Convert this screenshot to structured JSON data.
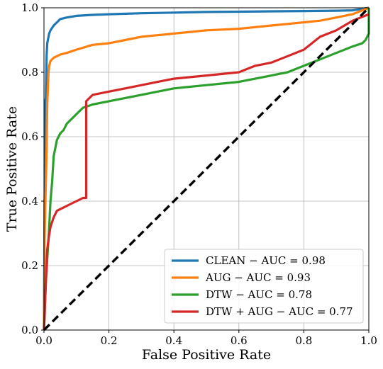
{
  "chart_data": {
    "type": "line",
    "title": "",
    "xlabel": "False Positive Rate",
    "ylabel": "True Positive Rate",
    "xlim": [
      0.0,
      1.0
    ],
    "ylim": [
      0.0,
      1.0
    ],
    "xticks": [
      "0.0",
      "0.2",
      "0.4",
      "0.6",
      "0.8",
      "1.0"
    ],
    "yticks": [
      "0.0",
      "0.2",
      "0.4",
      "0.6",
      "0.8",
      "1.0"
    ],
    "grid": true,
    "legend_position": "lower-right",
    "series": [
      {
        "name": "CLEAN − AUC = 0.98",
        "color": "#1f77b4",
        "x": [
          0,
          0.002,
          0.004,
          0.004,
          0.006,
          0.008,
          0.01,
          0.012,
          0.016,
          0.02,
          0.03,
          0.04,
          0.05,
          0.07,
          0.1,
          0.15,
          0.2,
          0.3,
          0.4,
          0.5,
          0.6,
          0.7,
          0.8,
          0.9,
          0.95,
          1.0
        ],
        "y": [
          0,
          0.4,
          0.5,
          0.71,
          0.72,
          0.85,
          0.89,
          0.9,
          0.92,
          0.93,
          0.945,
          0.955,
          0.965,
          0.97,
          0.975,
          0.978,
          0.98,
          0.983,
          0.985,
          0.987,
          0.988,
          0.989,
          0.99,
          0.991,
          0.992,
          1.0
        ]
      },
      {
        "name": "AUG − AUC = 0.93",
        "color": "#ff7f0e",
        "x": [
          0,
          0.002,
          0.004,
          0.006,
          0.008,
          0.01,
          0.012,
          0.014,
          0.016,
          0.02,
          0.025,
          0.03,
          0.04,
          0.05,
          0.07,
          0.1,
          0.15,
          0.2,
          0.25,
          0.3,
          0.35,
          0.4,
          0.5,
          0.6,
          0.7,
          0.75,
          0.8,
          0.85,
          0.9,
          0.95,
          1.0
        ],
        "y": [
          0,
          0.28,
          0.38,
          0.46,
          0.56,
          0.7,
          0.75,
          0.8,
          0.82,
          0.835,
          0.84,
          0.845,
          0.85,
          0.855,
          0.86,
          0.87,
          0.885,
          0.89,
          0.9,
          0.91,
          0.915,
          0.92,
          0.93,
          0.935,
          0.945,
          0.95,
          0.955,
          0.96,
          0.97,
          0.98,
          1.0
        ]
      },
      {
        "name": "DTW − AUC = 0.78",
        "color": "#2ca02c",
        "x": [
          0,
          0.003,
          0.006,
          0.01,
          0.015,
          0.02,
          0.025,
          0.03,
          0.04,
          0.05,
          0.06,
          0.07,
          0.08,
          0.1,
          0.12,
          0.15,
          0.2,
          0.25,
          0.3,
          0.35,
          0.4,
          0.5,
          0.6,
          0.7,
          0.75,
          0.8,
          0.85,
          0.9,
          0.95,
          0.98,
          0.99,
          1.0,
          1.0
        ],
        "y": [
          0,
          0.08,
          0.15,
          0.22,
          0.3,
          0.4,
          0.46,
          0.54,
          0.59,
          0.61,
          0.62,
          0.64,
          0.65,
          0.67,
          0.69,
          0.7,
          0.71,
          0.72,
          0.73,
          0.74,
          0.75,
          0.76,
          0.77,
          0.79,
          0.8,
          0.82,
          0.84,
          0.86,
          0.88,
          0.89,
          0.9,
          0.92,
          1.0
        ]
      },
      {
        "name": "DTW + AUG − AUC = 0.77",
        "color": "#d62728",
        "x": [
          0,
          0.002,
          0.004,
          0.006,
          0.008,
          0.01,
          0.015,
          0.02,
          0.03,
          0.04,
          0.06,
          0.08,
          0.1,
          0.12,
          0.13,
          0.13,
          0.15,
          0.2,
          0.25,
          0.3,
          0.35,
          0.4,
          0.5,
          0.6,
          0.65,
          0.7,
          0.75,
          0.8,
          0.85,
          0.9,
          0.95,
          1.0
        ],
        "y": [
          0,
          0.04,
          0.1,
          0.15,
          0.2,
          0.25,
          0.29,
          0.32,
          0.35,
          0.37,
          0.38,
          0.39,
          0.4,
          0.41,
          0.41,
          0.71,
          0.73,
          0.74,
          0.75,
          0.76,
          0.77,
          0.78,
          0.79,
          0.8,
          0.82,
          0.83,
          0.85,
          0.87,
          0.91,
          0.93,
          0.96,
          0.98
        ]
      },
      {
        "name": "",
        "color": "#000000",
        "dashed": true,
        "x": [
          0,
          1
        ],
        "y": [
          0,
          1
        ]
      }
    ]
  }
}
